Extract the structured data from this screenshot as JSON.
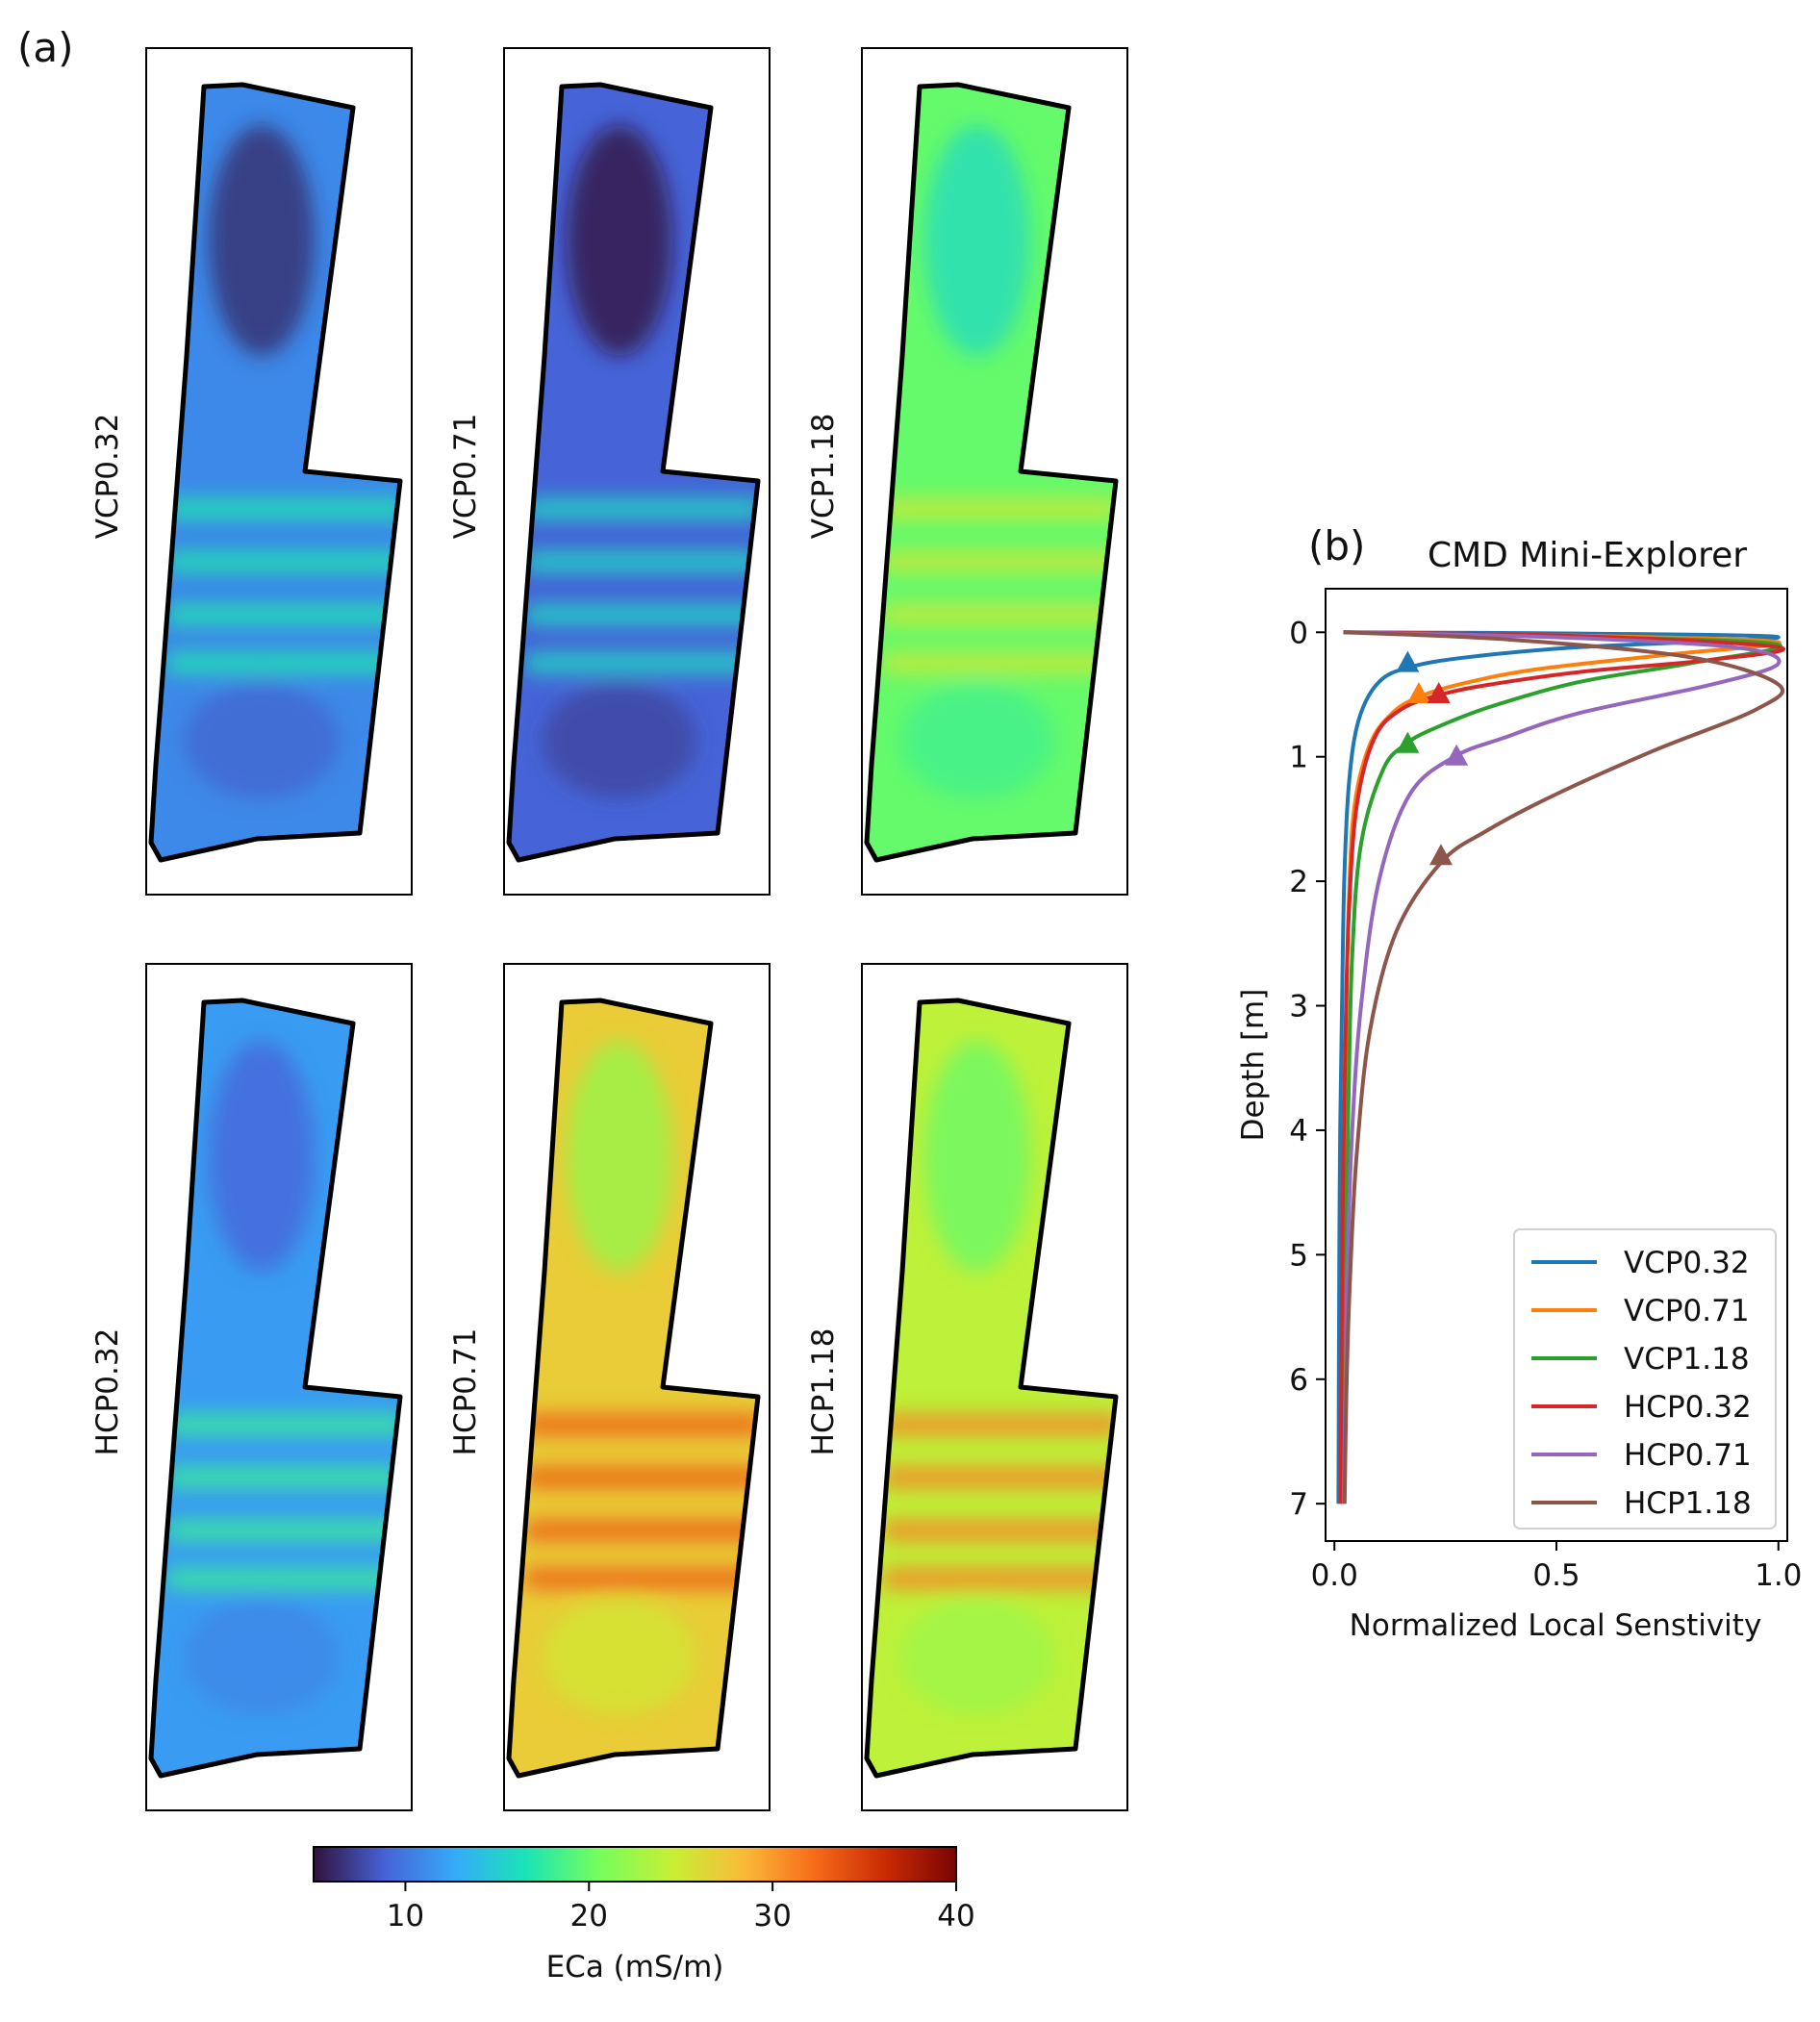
{
  "panel_a": {
    "label": "(a)",
    "maps": [
      {
        "label": "VCP0.32",
        "mean_eca": 11,
        "min_eca": 6,
        "max_eca": 17
      },
      {
        "label": "VCP0.71",
        "mean_eca": 9,
        "min_eca": 5,
        "max_eca": 16
      },
      {
        "label": "VCP1.18",
        "mean_eca": 20,
        "min_eca": 16,
        "max_eca": 25
      },
      {
        "label": "HCP0.32",
        "mean_eca": 12,
        "min_eca": 9,
        "max_eca": 18
      },
      {
        "label": "HCP0.71",
        "mean_eca": 27,
        "min_eca": 22,
        "max_eca": 33
      },
      {
        "label": "HCP1.18",
        "mean_eca": 24,
        "min_eca": 20,
        "max_eca": 31
      }
    ],
    "colorbar": {
      "label": "ECa (mS/m)",
      "min": 5,
      "max": 40,
      "ticks": [
        "10",
        "20",
        "30",
        "40"
      ],
      "tick_values": [
        10,
        20,
        30,
        40
      ],
      "colormap": [
        "#30123b",
        "#4662d7",
        "#36aaf9",
        "#1ae4b6",
        "#72fe5e",
        "#c8ef34",
        "#faba39",
        "#f66b19",
        "#ca2a04",
        "#7a0403"
      ]
    }
  },
  "chart_data": {
    "type": "line",
    "panel_label": "(b)",
    "title": "CMD Mini-Explorer",
    "xlabel": "Normalized Local Senstivity",
    "ylabel": "Depth [m]",
    "xlim": [
      -0.02,
      1.02
    ],
    "ylim": [
      7.3,
      -0.35
    ],
    "y_inverted": true,
    "xticks": [
      "0.0",
      "0.5",
      "1.0"
    ],
    "xtick_values": [
      0.0,
      0.5,
      1.0
    ],
    "yticks": [
      "0",
      "1",
      "2",
      "3",
      "4",
      "5",
      "6",
      "7"
    ],
    "ytick_values": [
      0,
      1,
      2,
      3,
      4,
      5,
      6,
      7
    ],
    "legend_position": "lower-right",
    "series": [
      {
        "name": "VCP0.32",
        "color": "#1f77b4",
        "x": [
          0.02,
          0.55,
          1.0,
          0.55,
          0.3,
          0.17,
          0.1,
          0.055,
          0.033,
          0.022,
          0.017,
          0.013,
          0.011,
          0.01,
          0.009
        ],
        "y": [
          0.0,
          0.01,
          0.04,
          0.12,
          0.2,
          0.28,
          0.4,
          0.7,
          1.2,
          2.0,
          3.0,
          4.0,
          5.0,
          6.0,
          7.0
        ],
        "marker": {
          "x": 0.165,
          "y": 0.25
        }
      },
      {
        "name": "VCP0.71",
        "color": "#ff7f0e",
        "x": [
          0.02,
          0.6,
          1.0,
          0.75,
          0.45,
          0.28,
          0.19,
          0.13,
          0.08,
          0.045,
          0.032,
          0.026,
          0.022,
          0.02,
          0.018
        ],
        "y": [
          0.0,
          0.03,
          0.08,
          0.18,
          0.3,
          0.42,
          0.52,
          0.65,
          0.9,
          1.4,
          2.2,
          3.3,
          4.5,
          5.7,
          7.0
        ],
        "marker": {
          "x": 0.19,
          "y": 0.5
        }
      },
      {
        "name": "VCP1.18",
        "color": "#2ca02c",
        "x": [
          0.02,
          0.6,
          1.0,
          0.8,
          0.55,
          0.35,
          0.22,
          0.16,
          0.11,
          0.06,
          0.04,
          0.032,
          0.027,
          0.024,
          0.022
        ],
        "y": [
          0.0,
          0.04,
          0.1,
          0.25,
          0.4,
          0.6,
          0.78,
          0.9,
          1.1,
          1.7,
          2.6,
          3.7,
          4.8,
          5.9,
          7.0
        ],
        "marker": {
          "x": 0.165,
          "y": 0.9
        }
      },
      {
        "name": "HCP0.32",
        "color": "#d62728",
        "x": [
          0.02,
          0.55,
          1.0,
          0.85,
          0.55,
          0.35,
          0.24,
          0.15,
          0.09,
          0.05,
          0.032,
          0.024,
          0.019,
          0.016,
          0.014
        ],
        "y": [
          0.0,
          0.03,
          0.12,
          0.22,
          0.32,
          0.42,
          0.5,
          0.62,
          0.85,
          1.4,
          2.3,
          3.4,
          4.6,
          5.8,
          7.0
        ],
        "marker": {
          "x": 0.235,
          "y": 0.5
        }
      },
      {
        "name": "HCP0.71",
        "color": "#9467bd",
        "x": [
          0.02,
          0.5,
          0.9,
          1.0,
          0.85,
          0.55,
          0.38,
          0.27,
          0.17,
          0.1,
          0.06,
          0.04,
          0.03,
          0.025,
          0.021
        ],
        "y": [
          0.0,
          0.04,
          0.12,
          0.25,
          0.42,
          0.65,
          0.85,
          1.0,
          1.3,
          2.0,
          3.0,
          4.0,
          5.0,
          6.0,
          7.0
        ],
        "marker": {
          "x": 0.275,
          "y": 1.0
        }
      },
      {
        "name": "HCP1.18",
        "color": "#8c564b",
        "x": [
          0.02,
          0.4,
          0.8,
          1.0,
          0.95,
          0.72,
          0.5,
          0.34,
          0.24,
          0.14,
          0.08,
          0.05,
          0.035,
          0.027,
          0.023
        ],
        "y": [
          0.0,
          0.06,
          0.2,
          0.42,
          0.62,
          0.95,
          1.3,
          1.6,
          1.85,
          2.4,
          3.2,
          4.2,
          5.2,
          6.1,
          7.0
        ],
        "marker": {
          "x": 0.24,
          "y": 1.8
        }
      }
    ]
  }
}
